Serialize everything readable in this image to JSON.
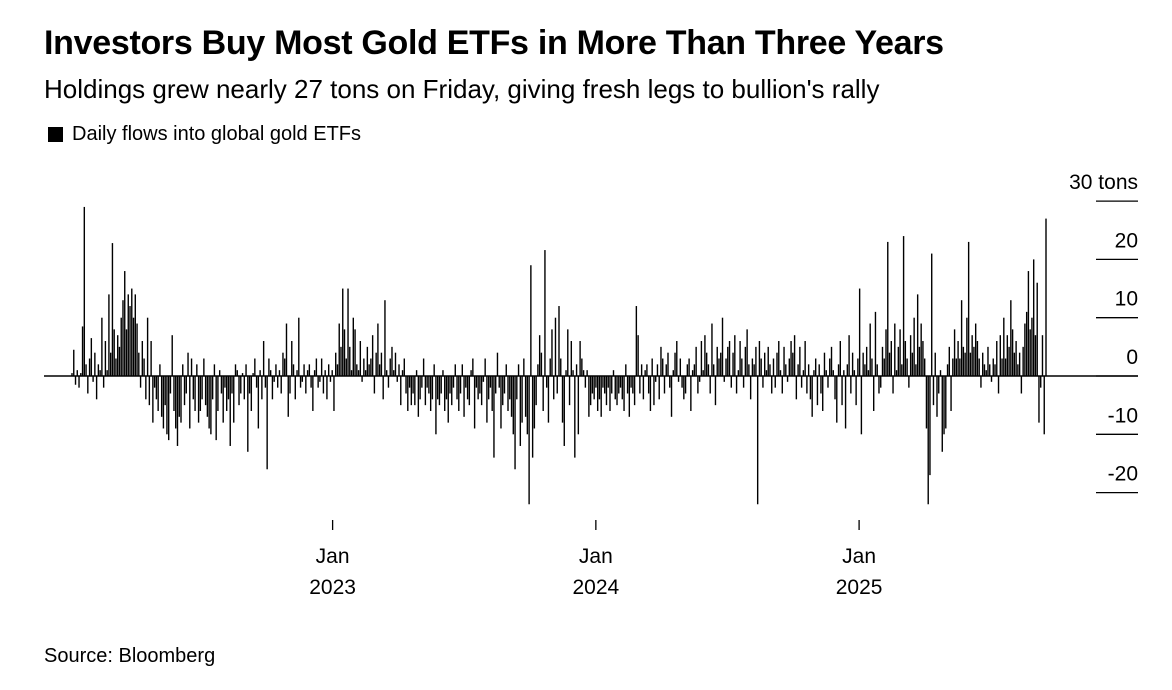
{
  "header": {
    "title": "Investors Buy Most Gold ETFs in More Than Three Years",
    "subtitle": "Holdings grew nearly 27 tons on Friday, giving fresh legs to bullion's rally"
  },
  "legend": {
    "label": "Daily flows into global gold ETFs",
    "color": "#000000"
  },
  "footer": {
    "source": "Source: Bloomberg"
  },
  "chart_data": {
    "type": "bar",
    "title": "Investors Buy Most Gold ETFs in More Than Three Years",
    "subtitle": "Holdings grew nearly 27 tons on Friday, giving fresh legs to bullion's rally",
    "xlabel": "",
    "ylabel": "tons",
    "ylim": [
      -25,
      30
    ],
    "yticks": [
      30,
      20,
      10,
      0,
      -10,
      -20
    ],
    "ytick_labels": [
      "30 tons",
      "20",
      "10",
      "0",
      "-10",
      "-20"
    ],
    "y_axis_side": "right",
    "x_range": [
      "2022-01",
      "2025-09"
    ],
    "xticks": [
      {
        "label_top": "Jan",
        "label_bottom": "2023",
        "position_years": 2023.0
      },
      {
        "label_top": "Jan",
        "label_bottom": "2024",
        "position_years": 2024.0
      },
      {
        "label_top": "Jan",
        "label_bottom": "2025",
        "position_years": 2025.0
      }
    ],
    "x_start_years": 2022.01,
    "x_end_years": 2025.71,
    "grid": false,
    "legend_position": "top-left",
    "series": [
      {
        "name": "Daily flows into global gold ETFs",
        "color": "#000000",
        "values": [
          0.5,
          4.5,
          -1.5,
          1,
          -2,
          0.5,
          8.5,
          29,
          2,
          -3,
          3,
          6.5,
          -1,
          4,
          -4,
          2,
          1,
          10,
          -2,
          6,
          1,
          14,
          4,
          22.8,
          8,
          3,
          7,
          5,
          10,
          13,
          18,
          8,
          14,
          12,
          15,
          10,
          14,
          9,
          4,
          -2,
          6,
          3,
          -4,
          10,
          -5,
          6,
          -8,
          -2,
          -4,
          -6,
          2,
          -7,
          -9,
          -5,
          -10,
          -11,
          -3,
          7,
          -6,
          -9,
          -12,
          -7,
          -8,
          2,
          -5,
          -3,
          4,
          -9,
          3,
          -4,
          -6,
          2,
          -8,
          -6,
          -4,
          3,
          -5,
          -7,
          -9,
          -10,
          -4,
          2,
          -11,
          -6,
          1,
          -3,
          -8,
          -2,
          -6,
          -4,
          -12,
          -3,
          -8,
          2,
          1,
          -5,
          -3,
          0.5,
          -4,
          2,
          -13,
          -3,
          -6,
          0.5,
          3,
          -2,
          -9,
          1,
          -4,
          6,
          -2,
          -16,
          3,
          1,
          -4,
          -1,
          2,
          -2,
          1,
          -3,
          4,
          3,
          9,
          -7,
          -3,
          6,
          2,
          -4,
          1,
          10,
          -2,
          -1,
          2,
          -3,
          1,
          2,
          -2,
          -6,
          1,
          3,
          -2,
          -1,
          3,
          -3,
          1,
          -4,
          2,
          -1,
          1,
          -6,
          4,
          2,
          9,
          5,
          15,
          8,
          3,
          15,
          5,
          1,
          10,
          8,
          2,
          1,
          6,
          -1,
          3,
          1,
          5,
          2,
          3,
          7,
          -3,
          4,
          9,
          2,
          4,
          -4,
          13,
          1,
          -2,
          3,
          5,
          1,
          4,
          -1,
          2,
          -5,
          1,
          3,
          -3,
          -6,
          -2,
          -5,
          -3,
          -5,
          1,
          -7,
          -4,
          -2,
          3,
          -5,
          -2,
          -3,
          -6,
          -4,
          2,
          -10,
          -4,
          -5,
          -3,
          1,
          -6,
          -4,
          -8,
          -3,
          -5,
          -2,
          2,
          -4,
          -6,
          -3,
          2,
          -7,
          -2,
          -4,
          -5,
          1,
          3,
          -9,
          -2,
          -4,
          -3,
          -5,
          -1,
          3,
          -8,
          -4,
          -2,
          -6,
          -14,
          -3,
          4,
          -2,
          -9,
          -5,
          -3,
          2,
          -6,
          -4,
          -7,
          -10,
          -16,
          -4,
          2,
          -12,
          -8,
          3,
          -7,
          -10,
          -22,
          19,
          -14,
          -9,
          -5,
          2,
          7,
          4,
          -6,
          21.6,
          -2,
          -8,
          3,
          8,
          -4,
          10,
          -3,
          12,
          3,
          -8,
          -12,
          1,
          8,
          -5,
          6,
          1,
          -14,
          2,
          -10,
          6,
          3,
          1,
          -2,
          1,
          -7,
          -5,
          -3,
          -4,
          -2,
          -6,
          -4,
          -7,
          -2,
          -3,
          -5,
          -2,
          -6,
          -3,
          1,
          -4,
          -5,
          -3,
          -2,
          -4,
          -6,
          2,
          -3,
          -7,
          -2,
          -3,
          -5,
          12,
          7,
          -3,
          2,
          -4,
          1,
          2,
          -3,
          -6,
          3,
          -5,
          -1,
          2,
          -4,
          5,
          3,
          -3,
          2,
          4,
          -2,
          -7,
          1,
          4,
          6,
          -1,
          3,
          -2,
          -4,
          -3,
          2,
          3,
          -6,
          1,
          2,
          5,
          -3,
          -1,
          6,
          1,
          7,
          4,
          2,
          -3,
          9,
          2,
          -5,
          5,
          3,
          4,
          10,
          -1,
          3,
          5,
          6,
          -2,
          4,
          7,
          -3,
          1,
          6,
          3,
          -2,
          5,
          8,
          2,
          -4,
          3,
          2,
          5,
          -22,
          6,
          3,
          -2,
          4,
          1,
          5,
          2,
          -3,
          3,
          -2,
          4,
          6,
          1,
          -3,
          5,
          2,
          -1,
          3,
          6,
          4,
          7,
          -4,
          2,
          5,
          -2,
          1,
          6,
          -3,
          2,
          -4,
          -7,
          1,
          3,
          -5,
          2,
          -3,
          -6,
          4,
          1,
          -2,
          3,
          5,
          1,
          -4,
          -8,
          2,
          6,
          -5,
          1,
          -9,
          2,
          7,
          -3,
          4,
          1,
          -5,
          3,
          15,
          -10,
          4,
          2,
          5,
          1,
          9,
          3,
          -6,
          11,
          2,
          -3,
          -2,
          5,
          3,
          8,
          23,
          4,
          6,
          -3,
          9,
          1,
          5,
          8,
          2,
          24,
          6,
          3,
          -2,
          7,
          4,
          10,
          2,
          14,
          5,
          9,
          6,
          3,
          -9,
          -22,
          -17,
          21,
          -5,
          4,
          -7,
          -3,
          1,
          -13,
          -10,
          -9,
          2,
          5,
          -6,
          3,
          8,
          3,
          6,
          3,
          13,
          5,
          4,
          10,
          23,
          4,
          7,
          5,
          9,
          6,
          3,
          -2,
          4,
          2,
          1,
          5,
          2,
          -1,
          3,
          2,
          6,
          -3,
          7,
          3,
          10,
          3,
          7,
          5,
          13,
          8,
          4,
          6,
          2,
          4,
          -3,
          5,
          9,
          11,
          18,
          8,
          10,
          20,
          7,
          16,
          -8,
          -2,
          7,
          -10,
          27
        ]
      }
    ]
  }
}
